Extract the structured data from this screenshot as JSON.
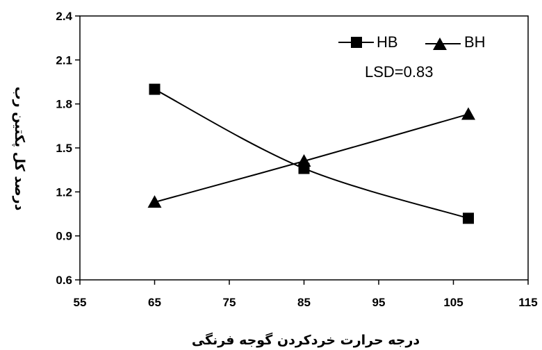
{
  "chart_data": {
    "type": "line",
    "xlabel": "درجه حرارت خردکردن گوجه فرنگی",
    "ylabel": "درصد کل پکتین رب",
    "xlim": [
      55,
      115
    ],
    "ylim": [
      0.6,
      2.4
    ],
    "x_ticks": [
      "55",
      "65",
      "75",
      "85",
      "95",
      "105",
      "115"
    ],
    "y_ticks": [
      "0.6",
      "0.9",
      "1.2",
      "1.5",
      "1.8",
      "2.1",
      "2.4"
    ],
    "grid": false,
    "legend_position": "top-right",
    "annotation": "LSD=0.83",
    "series": [
      {
        "name": "HB",
        "marker": "square",
        "color": "#000000",
        "x": [
          65,
          85,
          107
        ],
        "y": [
          1.9,
          1.36,
          1.02
        ]
      },
      {
        "name": "BH",
        "marker": "triangle",
        "color": "#000000",
        "x": [
          65,
          85,
          107
        ],
        "y": [
          1.13,
          1.41,
          1.73
        ]
      }
    ]
  }
}
